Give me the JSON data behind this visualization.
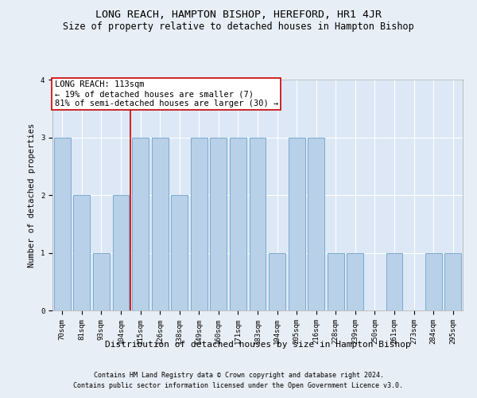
{
  "title": "LONG REACH, HAMPTON BISHOP, HEREFORD, HR1 4JR",
  "subtitle": "Size of property relative to detached houses in Hampton Bishop",
  "xlabel": "Distribution of detached houses by size in Hampton Bishop",
  "ylabel": "Number of detached properties",
  "footnote1": "Contains HM Land Registry data © Crown copyright and database right 2024.",
  "footnote2": "Contains public sector information licensed under the Open Government Licence v3.0.",
  "categories": [
    "70sqm",
    "81sqm",
    "93sqm",
    "104sqm",
    "115sqm",
    "126sqm",
    "138sqm",
    "149sqm",
    "160sqm",
    "171sqm",
    "183sqm",
    "194sqm",
    "205sqm",
    "216sqm",
    "228sqm",
    "239sqm",
    "250sqm",
    "261sqm",
    "273sqm",
    "284sqm",
    "295sqm"
  ],
  "values": [
    3,
    2,
    1,
    2,
    3,
    3,
    2,
    3,
    3,
    3,
    3,
    1,
    3,
    3,
    1,
    1,
    0,
    1,
    0,
    1,
    1
  ],
  "bar_color": "#b8d0e8",
  "bar_edge_color": "#7aaad0",
  "highlight_index": 4,
  "highlight_line_color": "#cc0000",
  "annotation_box_text": "LONG REACH: 113sqm\n← 19% of detached houses are smaller (7)\n81% of semi-detached houses are larger (30) →",
  "annotation_box_color": "#ffffff",
  "annotation_box_edge_color": "#cc0000",
  "ylim": [
    0,
    4
  ],
  "yticks": [
    0,
    1,
    2,
    3,
    4
  ],
  "background_color": "#e8eef5",
  "plot_background_color": "#dce8f5",
  "grid_color": "#ffffff",
  "title_fontsize": 9.5,
  "subtitle_fontsize": 8.5,
  "xlabel_fontsize": 8,
  "ylabel_fontsize": 7.5,
  "tick_fontsize": 6.5,
  "annotation_fontsize": 7.5,
  "footnote_fontsize": 6.0
}
